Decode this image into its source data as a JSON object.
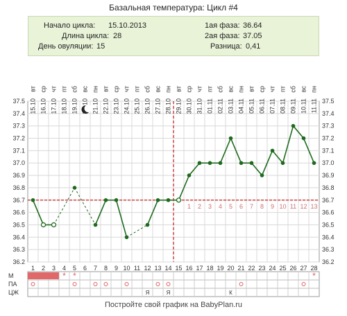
{
  "title": "Базальная температура: Цикл #4",
  "info": {
    "left": [
      {
        "label": "Начало цикла:",
        "value": "15.10.2013"
      },
      {
        "label": "Длина цикла:",
        "value": "28"
      },
      {
        "label": "День овуляции:",
        "value": "15"
      }
    ],
    "right": [
      {
        "label": "1ая фаза:",
        "value": "36.64"
      },
      {
        "label": "2ая фаза:",
        "value": "37.05"
      },
      {
        "label": "Разница:",
        "value": "0,41"
      }
    ]
  },
  "footer": "Постройте свой график на BabyPlan.ru",
  "colors": {
    "line": "#1e6a1e",
    "coverline": "#cc2222",
    "ovulation": "#cc2222",
    "grid": "#d8d8d8",
    "phase_numbers": "#d07070",
    "menstruation": "#e06868",
    "mark": "#e06060"
  },
  "chart_data": {
    "type": "line",
    "x": [
      1,
      2,
      3,
      4,
      5,
      6,
      7,
      8,
      9,
      10,
      11,
      12,
      13,
      14,
      15,
      16,
      17,
      18,
      19,
      20,
      21,
      22,
      23,
      24,
      25,
      26,
      27,
      28
    ],
    "weekdays": [
      "вт",
      "ср",
      "чт",
      "пт",
      "сб",
      "вс",
      "пн",
      "вт",
      "ср",
      "чт",
      "пт",
      "сб",
      "вс",
      "пн",
      "вт",
      "ср",
      "чт",
      "пт",
      "сб",
      "вс",
      "пн",
      "вт",
      "ср",
      "чт",
      "пт",
      "сб",
      "вс",
      "пн"
    ],
    "dates": [
      "15.10",
      "16.10",
      "17.10",
      "18.10",
      "19.10",
      "20.10",
      "21.10",
      "22.10",
      "23.10",
      "24.10",
      "25.10",
      "26.10",
      "27.10",
      "28.10",
      "29.10",
      "30.10",
      "31.10",
      "01.11",
      "02.11",
      "03.11",
      "04.11",
      "05.11",
      "06.11",
      "07.11",
      "08.11",
      "09.11",
      "10.11",
      "11.11"
    ],
    "values": [
      36.7,
      36.5,
      36.5,
      null,
      36.8,
      null,
      36.5,
      36.7,
      36.7,
      36.4,
      null,
      36.5,
      36.7,
      36.7,
      36.7,
      36.9,
      37.0,
      37.0,
      37.0,
      37.2,
      37.0,
      37.0,
      36.9,
      37.1,
      37.0,
      37.3,
      37.2,
      37.0
    ],
    "excluded_days": [
      5
    ],
    "open_marker_days": [
      2,
      3,
      15
    ],
    "y_ticks": [
      "36.2",
      "36.3",
      "36.4",
      "36.5",
      "36.6",
      "36.7",
      "36.8",
      "36.9",
      "37.0",
      "37.1",
      "37.2",
      "37.3",
      "37.4",
      "37.5"
    ],
    "ylim": [
      36.2,
      37.5
    ],
    "coverline": 36.7,
    "ovulation_day": 15,
    "post_ovulation_numbers": [
      "1",
      "2",
      "3",
      "4",
      "5",
      "6",
      "7",
      "8",
      "9",
      "10",
      "11",
      "12",
      "13"
    ],
    "moon_icon": "crescent-moon-icon",
    "grid": true,
    "rows": {
      "labels": [
        "М",
        "ПА",
        "ЦЖ"
      ],
      "menstruation_days": [
        1,
        2,
        3
      ],
      "m_star_days": [
        4,
        5,
        28
      ],
      "pa_circle_days": [
        1,
        5,
        7,
        8,
        10,
        13,
        14,
        21,
        27
      ],
      "pa_letters": [
        {
          "day": 12,
          "text": "Я"
        },
        {
          "day": 14,
          "text": "Я"
        },
        {
          "day": 20,
          "text": "К"
        }
      ]
    }
  }
}
